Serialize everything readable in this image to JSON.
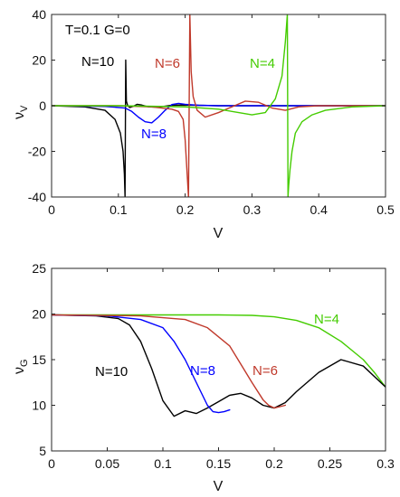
{
  "chart_data": [
    {
      "type": "line",
      "xlabel": "V",
      "ylabel": "ν",
      "ylabel_sub": "V",
      "xlim": [
        0,
        0.5
      ],
      "ylim": [
        -40,
        40
      ],
      "xticks": [
        0,
        0.1,
        0.2,
        0.3,
        0.4,
        0.5
      ],
      "xtick_labels": [
        "0",
        "0.1",
        "0.2",
        "0.3",
        "0.4",
        "0.5"
      ],
      "yticks": [
        -40,
        -20,
        0,
        20,
        40
      ],
      "ytick_labels": [
        "-40",
        "-20",
        "0",
        "20",
        "40"
      ],
      "grid": false,
      "annotations": [
        "T=0.1 G=0",
        "N=10",
        "N=6",
        "N=4",
        "N=8"
      ],
      "series": [
        {
          "name": "N=10",
          "color": "#000000",
          "x": [
            0,
            0.05,
            0.08,
            0.095,
            0.103,
            0.107,
            0.109,
            0.11,
            0.111,
            0.112,
            0.114,
            0.117,
            0.122,
            0.128,
            0.135,
            0.145,
            0.16,
            0.18,
            0.2,
            0.25,
            0.3,
            0.4,
            0.5
          ],
          "y": [
            0,
            -0.5,
            -2,
            -6,
            -12,
            -20,
            -30,
            -40,
            20,
            2,
            0,
            -0.8,
            -0.3,
            0.6,
            0.3,
            -0.5,
            -0.6,
            0.2,
            0.3,
            0,
            0,
            0,
            0
          ]
        },
        {
          "name": "N=8",
          "color": "#0000ff",
          "x": [
            0,
            0.08,
            0.11,
            0.12,
            0.13,
            0.14,
            0.15,
            0.16,
            0.17,
            0.18,
            0.19,
            0.2,
            0.22,
            0.25,
            0.3,
            0.5
          ],
          "y": [
            0,
            -0.3,
            -1,
            -2.5,
            -5,
            -7,
            -7.5,
            -5,
            -2,
            0.5,
            1,
            0.6,
            0.2,
            0,
            0,
            0
          ]
        },
        {
          "name": "N=6",
          "color": "#c0392b",
          "x": [
            0,
            0.1,
            0.15,
            0.18,
            0.19,
            0.197,
            0.2,
            0.203,
            0.205,
            0.207,
            0.209,
            0.212,
            0.218,
            0.23,
            0.25,
            0.27,
            0.29,
            0.31,
            0.33,
            0.35,
            0.37,
            0.4,
            0.45,
            0.5
          ],
          "y": [
            0,
            0,
            -0.5,
            -1.5,
            -2.5,
            -6,
            -15,
            -30,
            -40,
            40,
            15,
            4,
            -2,
            -5,
            -3,
            -0.5,
            2,
            1.5,
            -1,
            -2,
            -0.5,
            0,
            0,
            0
          ]
        },
        {
          "name": "N=4",
          "color": "#44cc00",
          "x": [
            0,
            0.1,
            0.2,
            0.25,
            0.28,
            0.3,
            0.32,
            0.335,
            0.345,
            0.35,
            0.353,
            0.354,
            0.355,
            0.357,
            0.36,
            0.365,
            0.375,
            0.39,
            0.41,
            0.45,
            0.5
          ],
          "y": [
            0,
            0,
            -0.5,
            -1.5,
            -3,
            -4,
            -3,
            3,
            13,
            28,
            40,
            -40,
            -35,
            -28,
            -20,
            -12,
            -7,
            -4,
            -2,
            -0.5,
            0
          ]
        }
      ]
    },
    {
      "type": "line",
      "xlabel": "V",
      "ylabel": "ν",
      "ylabel_sub": "G",
      "xlim": [
        0,
        0.3
      ],
      "ylim": [
        5,
        25
      ],
      "xticks": [
        0,
        0.05,
        0.1,
        0.15,
        0.2,
        0.25,
        0.3
      ],
      "xtick_labels": [
        "0",
        "0.05",
        "0.1",
        "0.15",
        "0.2",
        "0.25",
        "0.3"
      ],
      "yticks": [
        5,
        10,
        15,
        20,
        25
      ],
      "ytick_labels": [
        "5",
        "10",
        "15",
        "20",
        "25"
      ],
      "grid": false,
      "annotations": [
        "N=4",
        "N=10",
        "N=8",
        "N=6"
      ],
      "series": [
        {
          "name": "N=4",
          "color": "#44cc00",
          "x": [
            0,
            0.05,
            0.1,
            0.15,
            0.18,
            0.2,
            0.22,
            0.24,
            0.26,
            0.28,
            0.29,
            0.3
          ],
          "y": [
            19.9,
            19.9,
            19.9,
            19.9,
            19.85,
            19.7,
            19.3,
            18.5,
            17.0,
            15.0,
            13.6,
            12.0
          ]
        },
        {
          "name": "N=10",
          "color": "#000000",
          "x": [
            0,
            0.04,
            0.06,
            0.07,
            0.08,
            0.09,
            0.1,
            0.11,
            0.12,
            0.13,
            0.14,
            0.15,
            0.16,
            0.17,
            0.18,
            0.19,
            0.2,
            0.21,
            0.22,
            0.24,
            0.26,
            0.28,
            0.3
          ],
          "y": [
            19.9,
            19.8,
            19.5,
            18.8,
            17.0,
            14.0,
            10.5,
            8.8,
            9.4,
            9.1,
            9.7,
            10.4,
            11.1,
            11.3,
            10.8,
            10.0,
            9.7,
            10.3,
            11.5,
            13.6,
            15.0,
            14.3,
            12.0
          ]
        },
        {
          "name": "N=8",
          "color": "#0000ff",
          "x": [
            0,
            0.05,
            0.08,
            0.1,
            0.11,
            0.12,
            0.13,
            0.14,
            0.145,
            0.15,
            0.155,
            0.16
          ],
          "y": [
            19.9,
            19.8,
            19.4,
            18.5,
            17.0,
            15.0,
            12.5,
            10.0,
            9.3,
            9.2,
            9.3,
            9.5
          ]
        },
        {
          "name": "N=6",
          "color": "#c0392b",
          "x": [
            0,
            0.08,
            0.12,
            0.14,
            0.16,
            0.17,
            0.18,
            0.19,
            0.195,
            0.2,
            0.21
          ],
          "y": [
            19.9,
            19.8,
            19.4,
            18.5,
            16.5,
            14.5,
            12.5,
            10.6,
            10.0,
            9.7,
            10.0
          ]
        }
      ]
    }
  ]
}
